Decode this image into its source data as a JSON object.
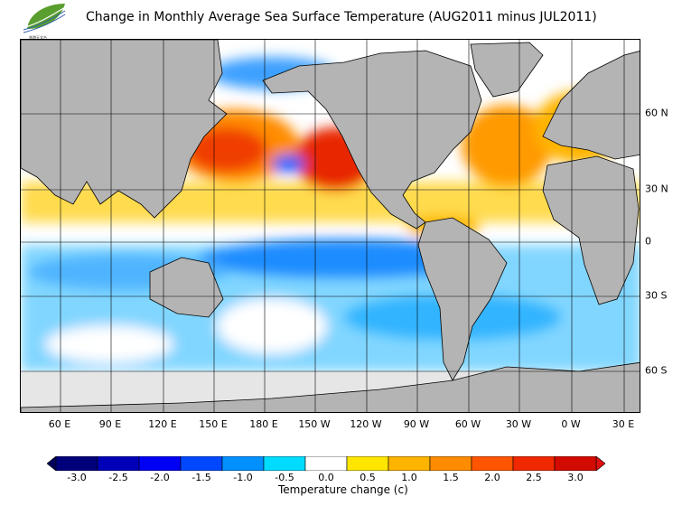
{
  "title": "Change in Monthly Average Sea Surface Temperature (AUG2011 minus JUL2011)",
  "logo_text": "HKO",
  "longitude_labels": [
    "60 E",
    "90 E",
    "120 E",
    "150 E",
    "180 E",
    "150 W",
    "120 W",
    "90 W",
    "60 W",
    "30 W",
    "0 W",
    "30 E"
  ],
  "latitude_labels": [
    "60 N",
    "30 N",
    "0",
    "30 S",
    "60 S"
  ],
  "colorbar": {
    "title": "Temperature change  (c)",
    "ticks": [
      "-3.0",
      "-2.5",
      "-2.0",
      "-1.5",
      "-1.0",
      "-0.5",
      "0.0",
      "0.5",
      "1.0",
      "1.5",
      "2.0",
      "2.5",
      "3.0"
    ],
    "colors": [
      "#00007a",
      "#0000b8",
      "#0000f5",
      "#0048ff",
      "#0090ff",
      "#00dcff",
      "#ffffff",
      "#ffe600",
      "#ffb400",
      "#ff8c00",
      "#ff5500",
      "#f02800",
      "#d20a00"
    ],
    "under_color": "#00005a",
    "over_color": "#e01010"
  },
  "colors": {
    "land": "#b4b4b4",
    "ice": "#e6e6e6",
    "ocean_neutral": "#ffffff"
  }
}
